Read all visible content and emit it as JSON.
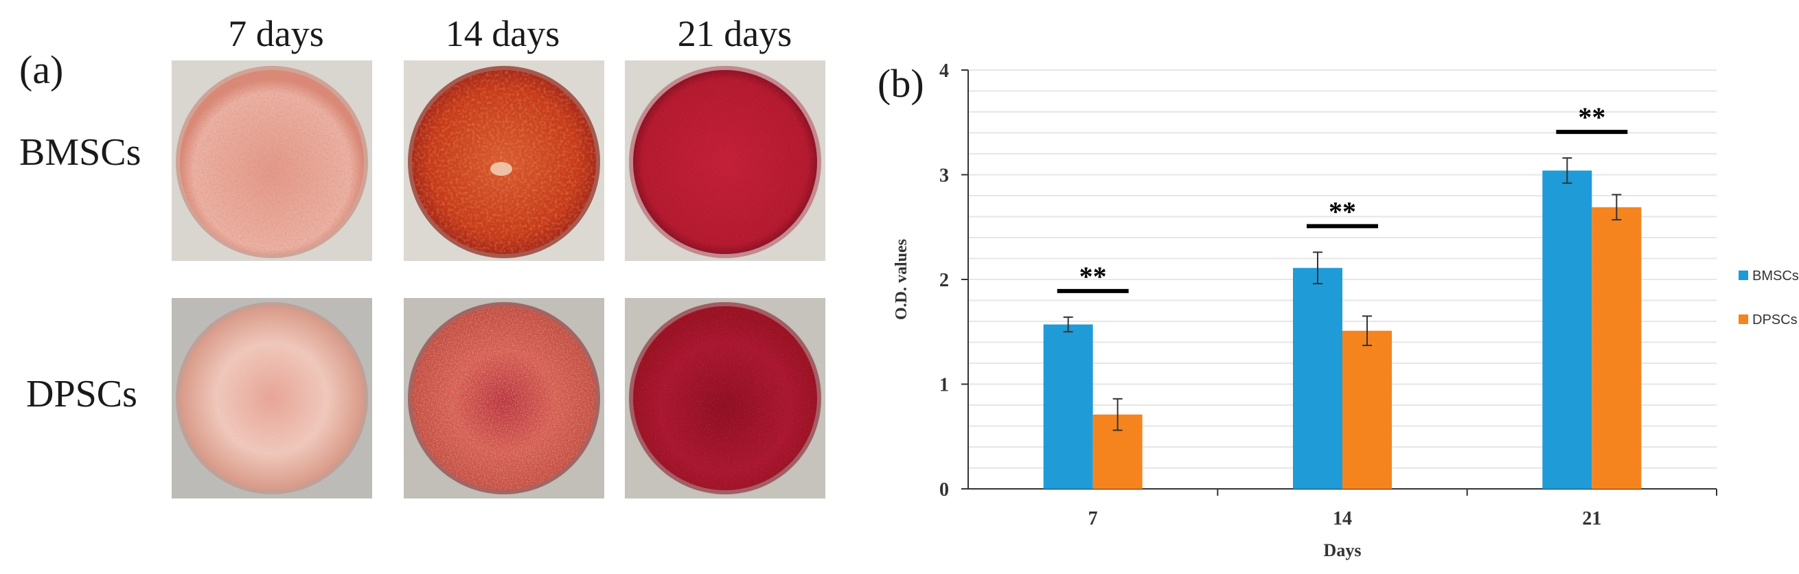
{
  "figure": {
    "panel_a_label": "(a)",
    "panel_b_label": "(b)",
    "columns": [
      "7 days",
      "14 days",
      "21 days"
    ],
    "rows": [
      "BMSCs",
      "DPSCs"
    ],
    "stain_colors": {
      "light": "#e7a596",
      "medium": "#c7371c",
      "dark": "#b3192f",
      "deep": "#9a1224"
    }
  },
  "chart_data": {
    "type": "bar",
    "categories": [
      "7",
      "14",
      "21"
    ],
    "series": [
      {
        "name": "BMSCs",
        "values": [
          1.57,
          2.11,
          3.04
        ],
        "errors": [
          0.07,
          0.15,
          0.12
        ],
        "color": "#1f9bd8"
      },
      {
        "name": "DPSCs",
        "values": [
          0.71,
          1.51,
          2.69
        ],
        "errors": [
          0.15,
          0.14,
          0.12
        ],
        "color": "#f5841f"
      }
    ],
    "xlabel": "Days",
    "ylabel": "O.D. values",
    "ylim": [
      0,
      4
    ],
    "yticks": [
      "0",
      "1",
      "2",
      "3",
      "4"
    ],
    "grid": true,
    "legend": "right",
    "significance": [
      "**",
      "**",
      "**"
    ]
  }
}
